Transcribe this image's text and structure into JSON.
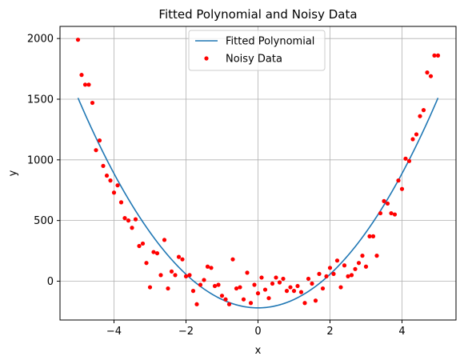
{
  "chart_data": {
    "type": "scatter",
    "title": "Fitted Polynomial and Noisy Data",
    "xlabel": "x",
    "ylabel": "y",
    "xlim": [
      -5.5,
      5.5
    ],
    "ylim": [
      -320,
      2100
    ],
    "xticks": [
      -4,
      -2,
      0,
      2,
      4
    ],
    "yticks": [
      0,
      500,
      1000,
      1500,
      2000
    ],
    "grid": true,
    "legend_position": "top-center",
    "series": [
      {
        "name": "Fitted Polynomial",
        "kind": "line",
        "color": "#1f77b4",
        "coefficients": [
          -220,
          0,
          69.2
        ],
        "x_range": [
          -5,
          5
        ]
      },
      {
        "name": "Noisy Data",
        "kind": "scatter",
        "color": "#ff0000",
        "x": [
          -5.0,
          -4.9,
          -4.8,
          -4.7,
          -4.6,
          -4.5,
          -4.4,
          -4.3,
          -4.2,
          -4.1,
          -4.0,
          -3.9,
          -3.8,
          -3.7,
          -3.6,
          -3.5,
          -3.4,
          -3.3,
          -3.2,
          -3.1,
          -3.0,
          -2.9,
          -2.8,
          -2.7,
          -2.6,
          -2.5,
          -2.4,
          -2.3,
          -2.2,
          -2.1,
          -2.0,
          -1.9,
          -1.8,
          -1.7,
          -1.6,
          -1.5,
          -1.4,
          -1.3,
          -1.2,
          -1.1,
          -1.0,
          -0.9,
          -0.8,
          -0.7,
          -0.6,
          -0.5,
          -0.4,
          -0.3,
          -0.2,
          -0.1,
          0.0,
          0.1,
          0.2,
          0.3,
          0.4,
          0.5,
          0.6,
          0.7,
          0.8,
          0.9,
          1.0,
          1.1,
          1.2,
          1.3,
          1.4,
          1.5,
          1.6,
          1.7,
          1.8,
          1.9,
          2.0,
          2.1,
          2.2,
          2.3,
          2.4,
          2.5,
          2.6,
          2.7,
          2.8,
          2.9,
          3.0,
          3.1,
          3.2,
          3.3,
          3.4,
          3.5,
          3.6,
          3.7,
          3.8,
          3.9,
          4.0,
          4.1,
          4.2,
          4.3,
          4.4,
          4.5,
          4.6,
          4.7,
          4.8,
          4.9,
          5.0
        ],
        "y": [
          1990,
          1700,
          1620,
          1620,
          1470,
          1080,
          1160,
          950,
          870,
          830,
          730,
          790,
          650,
          520,
          500,
          440,
          510,
          290,
          310,
          150,
          -50,
          240,
          230,
          50,
          340,
          -60,
          80,
          50,
          200,
          180,
          40,
          50,
          -80,
          -190,
          -30,
          10,
          120,
          110,
          -40,
          -30,
          -120,
          -150,
          -190,
          180,
          -60,
          -50,
          -150,
          70,
          -180,
          -30,
          -100,
          30,
          -70,
          -140,
          -20,
          30,
          -10,
          20,
          -80,
          -50,
          -80,
          -40,
          -90,
          -180,
          20,
          -20,
          -160,
          60,
          -60,
          40,
          110,
          60,
          170,
          -50,
          130,
          40,
          50,
          100,
          150,
          210,
          120,
          370,
          370,
          210,
          560,
          660,
          640,
          560,
          550,
          830,
          760,
          1010,
          990,
          1170,
          1210,
          1360,
          1410,
          1720,
          1690,
          1860,
          1860
        ]
      }
    ]
  }
}
